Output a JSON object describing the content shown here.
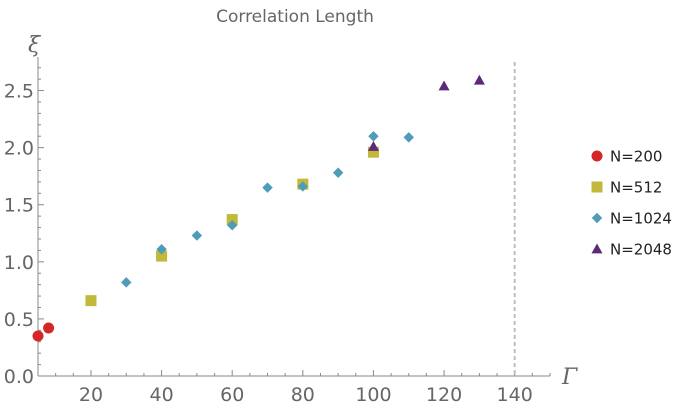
{
  "chart_data": {
    "type": "scatter",
    "title": "Correlation Length",
    "xlabel": "Γ",
    "ylabel": "ξ",
    "xlim": [
      5,
      150
    ],
    "ylim": [
      0,
      2.75
    ],
    "x_ticks": [
      20,
      40,
      60,
      80,
      100,
      120,
      140
    ],
    "y_ticks": [
      0.0,
      0.5,
      1.0,
      1.5,
      2.0,
      2.5
    ],
    "y_tick_labels": [
      "0.0",
      "0.5",
      "1.0",
      "1.5",
      "2.0",
      "2.5"
    ],
    "reference_line": {
      "x": 140,
      "style": "dashed"
    },
    "legend_position": "right",
    "grid": false,
    "series": [
      {
        "name": "N=200",
        "marker": "circle",
        "color": "#d62728",
        "points": [
          [
            5,
            0.35
          ],
          [
            8,
            0.42
          ]
        ]
      },
      {
        "name": "N=512",
        "marker": "square",
        "color": "#c2b93a",
        "points": [
          [
            20,
            0.66
          ],
          [
            40,
            1.05
          ],
          [
            60,
            1.37
          ],
          [
            80,
            1.68
          ],
          [
            100,
            1.96
          ]
        ]
      },
      {
        "name": "N=1024",
        "marker": "diamond",
        "color": "#4f9cb8",
        "points": [
          [
            30,
            0.82
          ],
          [
            40,
            1.11
          ],
          [
            50,
            1.23
          ],
          [
            60,
            1.32
          ],
          [
            70,
            1.65
          ],
          [
            80,
            1.66
          ],
          [
            90,
            1.78
          ],
          [
            100,
            2.1
          ],
          [
            110,
            2.09
          ]
        ]
      },
      {
        "name": "N=2048",
        "marker": "triangle",
        "color": "#5b2a7a",
        "points": [
          [
            100,
            2.01
          ],
          [
            120,
            2.54
          ],
          [
            130,
            2.59
          ]
        ]
      }
    ]
  }
}
